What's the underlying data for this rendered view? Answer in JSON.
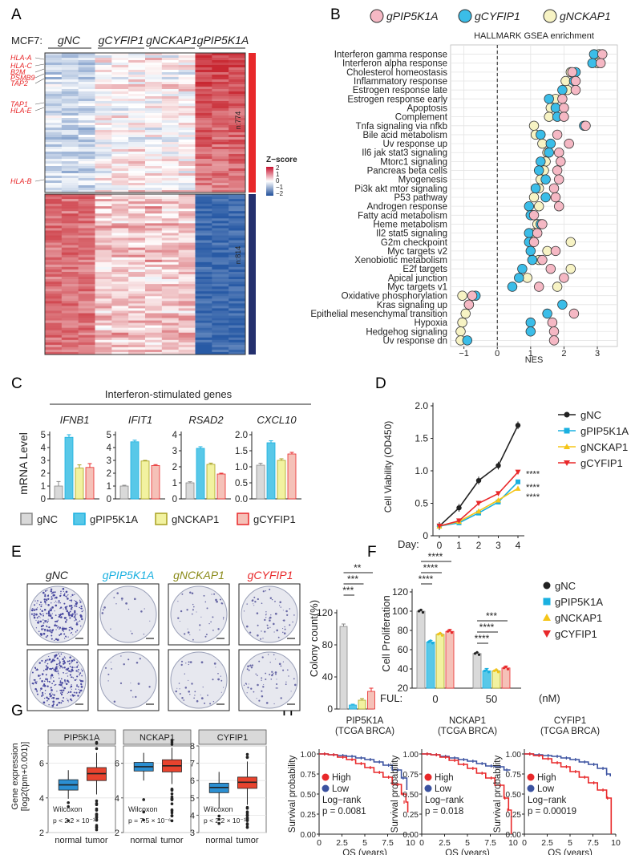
{
  "colors": {
    "gNC": "#d9d9d9",
    "gPIP5K1A": "#58c8e8",
    "gNCKAP1": "#f2f2a0",
    "gCYFIP1": "#f5c1b8",
    "red": "#e8282a",
    "blue": "#3b52a0",
    "neg_line": "#222222",
    "vir_nc": "#222222",
    "vir_pip": "#1ab0e0",
    "vir_nck": "#f5c518",
    "vir_cyf": "#e8282a"
  },
  "panels": {
    "A": {
      "letter": "A",
      "cell_line": "MCF7:",
      "groups": [
        "gNC",
        "gCYFIP1",
        "gNCKAP1",
        "gPIP5K1A"
      ],
      "gene_labels": [
        "HLA-A",
        "HLA-C",
        "B2M",
        "PSMB9",
        "TAP2",
        "TAP1",
        "HLA-E",
        "HLA-B"
      ],
      "cluster_up": "n:774",
      "cluster_down": "n:814",
      "legend_title": "Z−score",
      "legend_ticks": [
        "2",
        "1",
        "0",
        "−1",
        "−2"
      ]
    },
    "B": {
      "letter": "B",
      "legend": [
        "gPIP5K1A",
        "gCYFIP1",
        "gNCKAP1"
      ],
      "title": "HALLMARK GSEA enrichment",
      "xlabel": "NES",
      "xticks": [
        "−1",
        "0",
        "1",
        "2",
        "3"
      ]
    },
    "C": {
      "letter": "C",
      "header": "Interferon-stimulated genes",
      "ylabel": "mRNA Level",
      "legend": [
        "gNC",
        "gPIP5K1A",
        "gNCKAP1",
        "gCYFIP1"
      ]
    },
    "D": {
      "letter": "D",
      "ylabel": "Cell Viability (OD450)",
      "xlabel": "Day:",
      "legend": [
        "gNC",
        "gPIP5K1A",
        "gNCKAP1",
        "gCYFIP1"
      ],
      "sig": [
        "****",
        "****",
        "****"
      ]
    },
    "E": {
      "letter": "E",
      "col_labels": [
        "gNC",
        "gPIP5K1A",
        "gNCKAP1",
        "gCYFIP1"
      ],
      "ylabel": "Colony count(%)",
      "sig": [
        "**",
        "***",
        "***"
      ]
    },
    "F": {
      "letter": "F",
      "ylabel": "Cell Proliferation",
      "xlabel": "FUL:",
      "unit": "(nM)",
      "doses": [
        "0",
        "50"
      ],
      "legend": [
        "gNC",
        "gPIP5K1A",
        "gNCKAP1",
        "gCYFIP1"
      ],
      "sig0": [
        "****",
        "****",
        "****"
      ],
      "sig50": [
        "***",
        "****",
        "****"
      ]
    },
    "G": {
      "letter": "G",
      "ylabel1": "Gene expression",
      "ylabel2": "[log2(tpm+0.001)]",
      "test": "Wilcoxon",
      "xcats": [
        "normal",
        "tumor"
      ]
    },
    "H": {
      "letter": "H",
      "ylabel": "Survival probability",
      "xlabel": "OS (years)",
      "legend": [
        "High",
        "Low"
      ],
      "test": "Log−rank",
      "yticks": [
        "1.00",
        "0.75",
        "0.50",
        "0.25",
        "0.00"
      ],
      "xticks": [
        "0",
        "2.5",
        "5",
        "7.5",
        "10"
      ]
    }
  },
  "chart_data": [
    {
      "panel": "B",
      "type": "scatter",
      "title": "HALLMARK GSEA enrichment",
      "xlabel": "NES",
      "xlim": [
        -1.4,
        3.6
      ],
      "pathways": [
        "Interferon gamma response",
        "Interferon alpha response",
        "Cholesterol homeostasis",
        "Inflammatory response",
        "Estrogen response late",
        "Estrogen response early",
        "Apoptosis",
        "Complement",
        "Tnfa signaling via nfkb",
        "Bile acid metabolism",
        "Uv response up",
        "Il6 jak stat3 signaling",
        "Mtorc1 signaling",
        "Pancreas beta cells",
        "Myogenesis",
        "Pi3k akt mtor signaling",
        "P53 pathway",
        "Androgen response",
        "Fatty acid metabolism",
        "Heme metabolism",
        "Il2 stat5 signaling",
        "G2m checkpoint",
        "Myc targets v2",
        "Xenobiotic metabolism",
        "E2f targets",
        "Apical junction",
        "Myc targets v1",
        "Oxidative phosphorylation",
        "Kras signaling up",
        "Epithelial mesenchymal transition",
        "Hypoxia",
        "Hedgehog signaling",
        "Uv response dn"
      ],
      "series": [
        {
          "name": "gNCKAP1",
          "values": [
            3.05,
            3.0,
            2.2,
            2.05,
            2.1,
            1.75,
            1.6,
            1.55,
            1.1,
            1.15,
            1.35,
            1.5,
            1.45,
            1.4,
            1.3,
            1.25,
            1.1,
            1.25,
            1.05,
            1.2,
            1.1,
            2.2,
            1.5,
            1.25,
            2.2,
            0.9,
            1.8,
            -1.05,
            -0.85,
            -0.95,
            -1.05,
            -1.1,
            -1.1
          ]
        },
        {
          "name": "gCYFIP1",
          "values": [
            2.9,
            2.85,
            2.35,
            2.3,
            1.95,
            1.55,
            1.75,
            1.8,
            2.6,
            1.3,
            1.6,
            1.55,
            1.3,
            1.25,
            1.45,
            1.15,
            1.45,
            0.95,
            1.0,
            1.3,
            0.95,
            0.95,
            1.0,
            1.05,
            0.75,
            0.65,
            0.45,
            -0.65,
            1.95,
            1.5,
            1.0,
            1.0,
            -0.9
          ]
        },
        {
          "name": "gPIP5K1A",
          "values": [
            3.15,
            3.1,
            2.25,
            2.35,
            2.35,
            1.95,
            2.0,
            2.0,
            2.65,
            1.8,
            2.15,
            1.85,
            1.9,
            1.8,
            1.85,
            1.7,
            1.75,
            1.85,
            1.1,
            1.35,
            1.2,
            1.1,
            1.75,
            1.35,
            1.6,
            2.0,
            1.25,
            -0.75,
            -0.85,
            2.3,
            1.65,
            1.7,
            1.7
          ]
        }
      ]
    },
    {
      "panel": "C",
      "type": "bar",
      "genes": [
        "IFNB1",
        "IFIT1",
        "RSAD2",
        "CXCL10"
      ],
      "categories": [
        "gNC",
        "gPIP5K1A",
        "gNCKAP1",
        "gCYFIP1"
      ],
      "ylims": [
        [
          0,
          5
        ],
        [
          0,
          5
        ],
        [
          0,
          4
        ],
        [
          0,
          2.0
        ]
      ],
      "yticks": [
        [
          "0",
          "1",
          "2",
          "3",
          "4",
          "5"
        ],
        [
          "0",
          "1",
          "2",
          "3",
          "4",
          "5"
        ],
        [
          "0",
          "1",
          "2",
          "3",
          "4"
        ],
        [
          "0.0",
          "0.5",
          "1.0",
          "1.5",
          "2.0"
        ]
      ],
      "values": [
        [
          1.0,
          4.8,
          2.4,
          2.45
        ],
        [
          1.0,
          4.45,
          2.95,
          2.6
        ],
        [
          1.0,
          3.15,
          2.15,
          1.55
        ],
        [
          1.05,
          1.75,
          1.2,
          1.4
        ]
      ],
      "errors": [
        [
          0.35,
          0.2,
          0.25,
          0.3
        ],
        [
          0.06,
          0.12,
          0.05,
          0.07
        ],
        [
          0.07,
          0.1,
          0.08,
          0.05
        ],
        [
          0.06,
          0.06,
          0.05,
          0.05
        ]
      ]
    },
    {
      "panel": "D",
      "type": "line",
      "x": [
        0,
        1,
        2,
        3,
        4
      ],
      "ylim": [
        0,
        2.0
      ],
      "yticks": [
        "0",
        "0.5",
        "1.0",
        "1.5",
        "2.0"
      ],
      "xticks": [
        "0",
        "1",
        "2",
        "3",
        "4"
      ],
      "series": [
        {
          "name": "gNC",
          "values": [
            0.15,
            0.43,
            0.85,
            1.08,
            1.7
          ],
          "err": 0.06
        },
        {
          "name": "gPIP5K1A",
          "values": [
            0.15,
            0.2,
            0.35,
            0.52,
            0.83
          ],
          "err": 0.03
        },
        {
          "name": "gNCKAP1",
          "values": [
            0.15,
            0.22,
            0.38,
            0.55,
            0.73
          ],
          "err": 0.03
        },
        {
          "name": "gCYFIP1",
          "values": [
            0.15,
            0.23,
            0.5,
            0.65,
            0.98
          ],
          "err": 0.03
        }
      ]
    },
    {
      "panel": "E",
      "type": "bar",
      "categories": [
        "gNC",
        "gPIP5K1A",
        "gNCKAP1",
        "gCYFIP1"
      ],
      "values": [
        103,
        5,
        11,
        22
      ],
      "errors": [
        3,
        1,
        2,
        4
      ],
      "ylim": [
        0,
        120
      ],
      "yticks": [
        "0",
        "40",
        "80",
        "120"
      ]
    },
    {
      "panel": "F",
      "type": "bar",
      "groups": [
        "0",
        "50"
      ],
      "categories": [
        "gNC",
        "gPIP5K1A",
        "gNCKAP1",
        "gCYFIP1"
      ],
      "values": [
        [
          100,
          68,
          76,
          79
        ],
        [
          56,
          38,
          38,
          41
        ]
      ],
      "errors": [
        [
          1.5,
          1.5,
          1.0,
          2.0
        ],
        [
          1.0,
          2.5,
          1.0,
          2.0
        ]
      ],
      "ylim": [
        20,
        120
      ],
      "yticks": [
        "20",
        "40",
        "60",
        "80",
        "100",
        "120"
      ]
    },
    {
      "panel": "G",
      "type": "box",
      "genes": [
        "PIP5K1A",
        "NCKAP1",
        "CYFIP1"
      ],
      "categories": [
        "normal",
        "tumor"
      ],
      "ylims": [
        [
          2,
          7
        ],
        [
          2,
          7
        ],
        [
          3,
          8
        ]
      ],
      "yticks": [
        [
          "2",
          "4",
          "6"
        ],
        [
          "2",
          "4",
          "6"
        ],
        [
          "3",
          "4",
          "5",
          "6",
          "7",
          "8"
        ]
      ],
      "boxes": [
        [
          [
            3.95,
            4.45,
            4.75,
            5.05,
            5.6
          ],
          [
            4.2,
            5.0,
            5.4,
            5.75,
            6.6
          ]
        ],
        [
          [
            5.0,
            5.55,
            5.8,
            6.05,
            6.6
          ],
          [
            4.8,
            5.5,
            5.85,
            6.2,
            6.9
          ]
        ],
        [
          [
            4.4,
            5.3,
            5.6,
            5.85,
            6.5
          ],
          [
            4.6,
            5.55,
            5.9,
            6.2,
            7.1
          ]
        ]
      ],
      "pvalues": [
        "p < 2.2 × 10⁻¹⁶",
        "p = 7.5 × 10⁻⁶",
        "p < 2.2 × 10⁻¹⁶"
      ]
    },
    {
      "panel": "H",
      "type": "line",
      "titles": [
        [
          "PIP5K1A",
          "(TCGA BRCA)"
        ],
        [
          "NCKAP1",
          "(TCGA BRCA)"
        ],
        [
          "CYFIP1",
          "(TCGA BRCA)"
        ]
      ],
      "pvalues": [
        "p = 0.0081",
        "p = 0.018",
        "p = 0.00019"
      ],
      "curves": [
        {
          "high": [
            [
              0,
              1
            ],
            [
              1,
              0.99
            ],
            [
              2,
              0.96
            ],
            [
              3,
              0.93
            ],
            [
              4,
              0.88
            ],
            [
              5,
              0.83
            ],
            [
              6,
              0.77
            ],
            [
              7,
              0.71
            ],
            [
              8,
              0.62
            ],
            [
              9,
              0.5
            ],
            [
              9.5,
              0.4
            ],
            [
              9.7,
              0.27
            ]
          ],
          "low": [
            [
              0,
              1
            ],
            [
              1,
              0.99
            ],
            [
              2,
              0.98
            ],
            [
              3,
              0.97
            ],
            [
              4,
              0.95
            ],
            [
              5,
              0.93
            ],
            [
              6,
              0.9
            ],
            [
              7,
              0.86
            ],
            [
              8,
              0.8
            ],
            [
              9,
              0.7
            ],
            [
              9.6,
              0.55
            ]
          ]
        },
        {
          "high": [
            [
              0,
              1
            ],
            [
              1,
              0.99
            ],
            [
              2,
              0.96
            ],
            [
              3,
              0.92
            ],
            [
              4,
              0.87
            ],
            [
              5,
              0.82
            ],
            [
              6,
              0.76
            ],
            [
              7,
              0.7
            ],
            [
              8,
              0.61
            ],
            [
              9,
              0.45
            ],
            [
              9.5,
              0.3
            ],
            [
              9.8,
              0.0
            ]
          ],
          "low": [
            [
              0,
              1
            ],
            [
              1,
              0.99
            ],
            [
              2,
              0.97
            ],
            [
              3,
              0.95
            ],
            [
              4,
              0.93
            ],
            [
              5,
              0.91
            ],
            [
              6,
              0.88
            ],
            [
              7,
              0.85
            ],
            [
              8,
              0.84
            ],
            [
              9,
              0.8
            ],
            [
              9.7,
              0.8
            ]
          ]
        },
        {
          "high": [
            [
              0,
              1
            ],
            [
              1,
              0.98
            ],
            [
              2,
              0.94
            ],
            [
              3,
              0.89
            ],
            [
              4,
              0.84
            ],
            [
              5,
              0.78
            ],
            [
              6,
              0.71
            ],
            [
              7,
              0.64
            ],
            [
              8,
              0.55
            ],
            [
              9,
              0.45
            ],
            [
              9.5,
              0.0
            ]
          ],
          "low": [
            [
              0,
              1
            ],
            [
              1,
              0.99
            ],
            [
              2,
              0.98
            ],
            [
              3,
              0.97
            ],
            [
              4,
              0.95
            ],
            [
              5,
              0.93
            ],
            [
              6,
              0.9
            ],
            [
              7,
              0.87
            ],
            [
              8,
              0.82
            ],
            [
              9,
              0.75
            ],
            [
              9.4,
              0.72
            ]
          ]
        }
      ]
    }
  ]
}
